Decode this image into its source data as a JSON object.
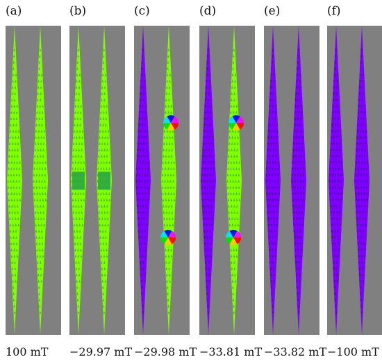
{
  "colors": {
    "background": "#808080",
    "up": "#7fff00",
    "down": "#7f00ff",
    "arrow_up": "#2f9e16",
    "arrow_down": "#3a0a86",
    "wall": "#27a346"
  },
  "panels": [
    {
      "label": "(a)",
      "field": "100 mT",
      "elements": [
        {
          "state": "up"
        },
        {
          "state": "up"
        }
      ]
    },
    {
      "label": "(b)",
      "field": "−29.97 mT",
      "elements": [
        {
          "state": "up",
          "wall": true
        },
        {
          "state": "up",
          "wall": true
        }
      ]
    },
    {
      "label": "(c)",
      "field": "−29.98 mT",
      "elements": [
        {
          "state": "down"
        },
        {
          "state": "up",
          "vortices": true
        }
      ]
    },
    {
      "label": "(d)",
      "field": "−33.81 mT",
      "elements": [
        {
          "state": "down"
        },
        {
          "state": "up",
          "vortices": true
        }
      ]
    },
    {
      "label": "(e)",
      "field": "−33.82 mT",
      "elements": [
        {
          "state": "down"
        },
        {
          "state": "down"
        }
      ]
    },
    {
      "label": "(f)",
      "field": "−100 mT",
      "elements": [
        {
          "state": "down"
        },
        {
          "state": "down"
        }
      ]
    }
  ]
}
